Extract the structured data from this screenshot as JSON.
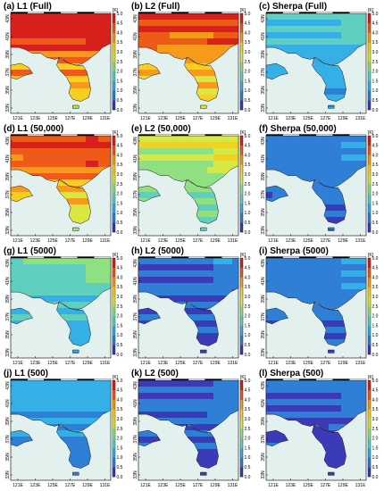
{
  "colorbar": {
    "unit": "[K]",
    "ticks": [
      "5.0",
      "4.5",
      "4.0",
      "3.5",
      "3.0",
      "2.5",
      "2.0",
      "1.5",
      "1.0",
      "0.5",
      "0.0"
    ],
    "range": [
      0,
      5
    ],
    "colormap": [
      "#3b3bb8",
      "#2f7fd6",
      "#35b0e6",
      "#5fd0c0",
      "#8fe080",
      "#d8e840",
      "#f5d020",
      "#f59a1a",
      "#ee5a18",
      "#d8201c"
    ]
  },
  "axes": {
    "lon_ticks": [
      "121E",
      "123E",
      "125E",
      "127E",
      "129E",
      "131E"
    ],
    "lat_ticks": [
      "43N",
      "41N",
      "39N",
      "37N",
      "35N",
      "33N"
    ]
  },
  "chart_data": [
    {
      "type": "heatmap",
      "title": "(a) L1 (Full)",
      "mean_error_k": 4.2
    },
    {
      "type": "heatmap",
      "title": "(b) L2 (Full)",
      "mean_error_k": 4.0
    },
    {
      "type": "heatmap",
      "title": "(c) Sherpa (Full)",
      "mean_error_k": 1.3
    },
    {
      "type": "heatmap",
      "title": "(d) L1 (50,000)",
      "mean_error_k": 3.8
    },
    {
      "type": "heatmap",
      "title": "(e) L2 (50,000)",
      "mean_error_k": 2.4
    },
    {
      "type": "heatmap",
      "title": "(f) Sherpa (50,000)",
      "mean_error_k": 0.6
    },
    {
      "type": "heatmap",
      "title": "(g) L1 (5000)",
      "mean_error_k": 1.6
    },
    {
      "type": "heatmap",
      "title": "(h) L2 (5000)",
      "mean_error_k": 0.5
    },
    {
      "type": "heatmap",
      "title": "(i) Sherpa (5000)",
      "mean_error_k": 0.6
    },
    {
      "type": "heatmap",
      "title": "(j) L1 (500)",
      "mean_error_k": 1.0
    },
    {
      "type": "heatmap",
      "title": "(k) L2 (500)",
      "mean_error_k": 0.5
    },
    {
      "type": "heatmap",
      "title": "(l) Sherpa (500)",
      "mean_error_k": 0.5
    }
  ]
}
